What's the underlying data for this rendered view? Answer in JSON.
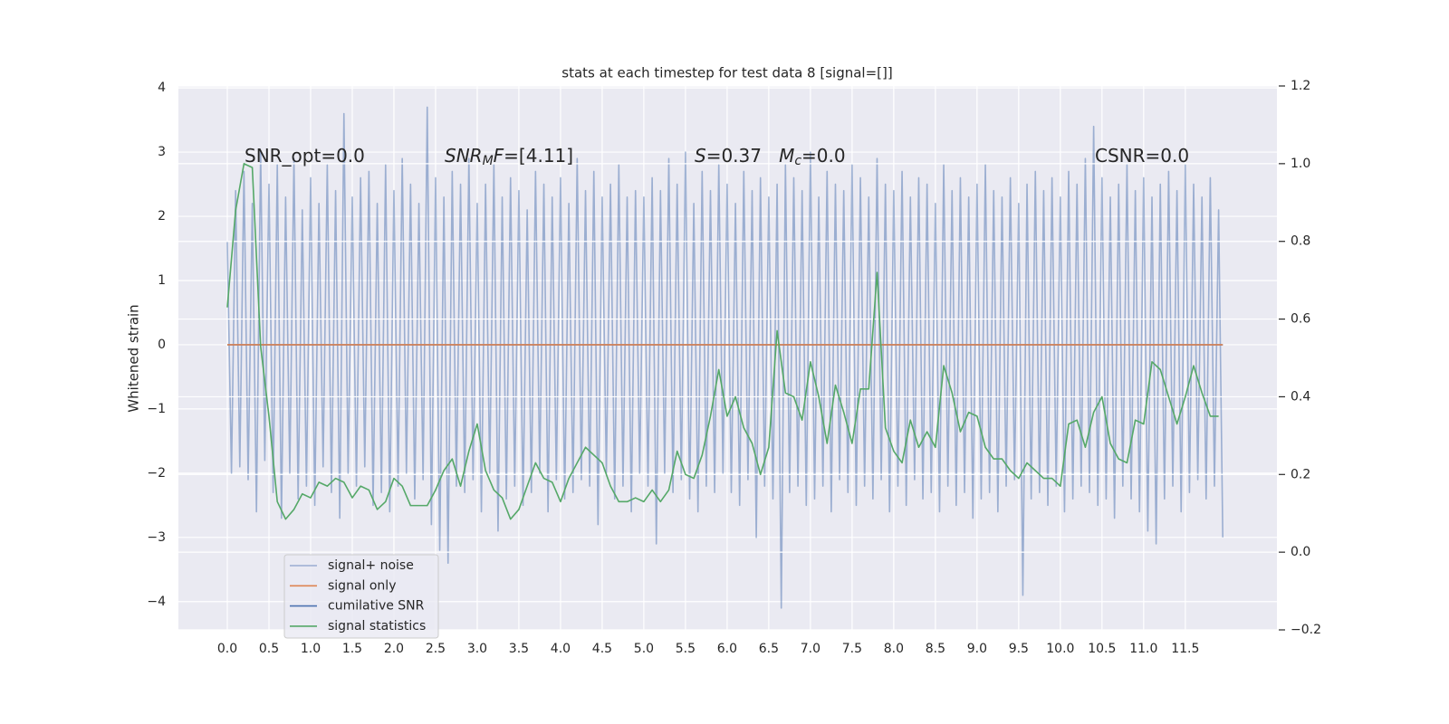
{
  "chart_data": {
    "type": "line",
    "title": "stats at each timestep for test data 8 [signal=[]]",
    "ylabel": "Whitened strain",
    "xlim": [
      -0.587,
      12.6
    ],
    "ylim": [
      -4.44,
      4.03
    ],
    "y2lim": [
      -0.2,
      1.2
    ],
    "xticks": [
      {
        "value": 0,
        "label": "0.0"
      },
      0.5,
      {
        "value": 1,
        "label": "1.0"
      },
      1.5,
      {
        "value": 2,
        "label": "2.0"
      },
      2.5,
      {
        "value": 3,
        "label": "3.0"
      },
      3.5,
      {
        "value": 4,
        "label": "4.0"
      },
      4.5,
      {
        "value": 5,
        "label": "5.0"
      },
      5.5,
      {
        "value": 6,
        "label": "6.0"
      },
      6.5,
      {
        "value": 7,
        "label": "7.0"
      },
      7.5,
      {
        "value": 8,
        "label": "8.0"
      },
      8.5,
      {
        "value": 9,
        "label": "9.0"
      },
      9.5,
      {
        "value": 10,
        "label": "10.0"
      },
      10.5,
      {
        "value": 11,
        "label": "11.0"
      },
      11.5
    ],
    "yticks": [
      {
        "value": -4,
        "label": "−4"
      },
      {
        "value": -3,
        "label": "−3"
      },
      {
        "value": -2,
        "label": "−2"
      },
      {
        "value": -1,
        "label": "−1"
      },
      0,
      1,
      2,
      3,
      4
    ],
    "y2ticks": [
      {
        "value": -0.2,
        "label": "−0.2"
      },
      {
        "value": 0,
        "label": "0.0"
      },
      0.2,
      0.4,
      0.6,
      0.8,
      {
        "value": 1,
        "label": "1.0"
      },
      1.2
    ],
    "grid": true,
    "legend": "lower left",
    "annotations": [
      [
        {
          "text": "SNR_opt=0.0"
        }
      ],
      [
        {
          "text": "SNR",
          "italic": true
        },
        {
          "text": "M",
          "italic": true,
          "sub": true
        },
        {
          "text": "F",
          "italic": true
        },
        {
          "text": "=[4.11]"
        }
      ],
      [
        {
          "text": "S",
          "italic": true
        },
        {
          "text": "=0.37   "
        },
        {
          "text": "M",
          "italic": true
        },
        {
          "text": "c",
          "italic": true,
          "sub": true
        },
        {
          "text": "=0.0"
        }
      ],
      [
        {
          "text": "CSNR=0.0"
        }
      ]
    ],
    "series": [
      {
        "name": "signal+ noise",
        "color": "#4c72b0",
        "opacity": 0.5,
        "x": [
          0,
          0.05,
          0.1,
          0.15,
          0.2,
          0.25,
          0.3,
          0.35,
          0.4,
          0.45,
          0.5,
          0.55,
          0.6,
          0.65,
          0.7,
          0.75,
          0.8,
          0.85,
          0.9,
          0.95,
          1,
          1.05,
          1.1,
          1.15,
          1.2,
          1.25,
          1.3,
          1.35,
          1.4,
          1.45,
          1.5,
          1.55,
          1.6,
          1.65,
          1.7,
          1.75,
          1.8,
          1.85,
          1.9,
          1.95,
          2,
          2.05,
          2.1,
          2.15,
          2.2,
          2.25,
          2.3,
          2.35,
          2.4,
          2.45,
          2.5,
          2.55,
          2.6,
          2.65,
          2.7,
          2.75,
          2.8,
          2.85,
          2.9,
          2.95,
          3,
          3.05,
          3.1,
          3.15,
          3.2,
          3.25,
          3.3,
          3.35,
          3.4,
          3.45,
          3.5,
          3.55,
          3.6,
          3.65,
          3.7,
          3.75,
          3.8,
          3.85,
          3.9,
          3.95,
          4,
          4.05,
          4.1,
          4.15,
          4.2,
          4.25,
          4.3,
          4.35,
          4.4,
          4.45,
          4.5,
          4.55,
          4.6,
          4.65,
          4.7,
          4.75,
          4.8,
          4.85,
          4.9,
          4.95,
          5,
          5.05,
          5.1,
          5.15,
          5.2,
          5.25,
          5.3,
          5.35,
          5.4,
          5.45,
          5.5,
          5.55,
          5.6,
          5.65,
          5.7,
          5.75,
          5.8,
          5.85,
          5.9,
          5.95,
          6,
          6.05,
          6.1,
          6.15,
          6.2,
          6.25,
          6.3,
          6.35,
          6.4,
          6.45,
          6.5,
          6.55,
          6.6,
          6.65,
          6.7,
          6.75,
          6.8,
          6.85,
          6.9,
          6.95,
          7,
          7.05,
          7.1,
          7.15,
          7.2,
          7.25,
          7.3,
          7.35,
          7.4,
          7.45,
          7.5,
          7.55,
          7.6,
          7.65,
          7.7,
          7.75,
          7.8,
          7.85,
          7.9,
          7.95,
          8,
          8.05,
          8.1,
          8.15,
          8.2,
          8.25,
          8.3,
          8.35,
          8.4,
          8.45,
          8.5,
          8.55,
          8.6,
          8.65,
          8.7,
          8.75,
          8.8,
          8.85,
          8.9,
          8.95,
          9,
          9.05,
          9.1,
          9.15,
          9.2,
          9.25,
          9.3,
          9.35,
          9.4,
          9.45,
          9.5,
          9.55,
          9.6,
          9.65,
          9.7,
          9.75,
          9.8,
          9.85,
          9.9,
          9.95,
          10,
          10.05,
          10.1,
          10.15,
          10.2,
          10.25,
          10.3,
          10.35,
          10.4,
          10.45,
          10.5,
          10.55,
          10.6,
          10.65,
          10.7,
          10.75,
          10.8,
          10.85,
          10.9,
          10.95,
          11,
          11.05,
          11.1,
          11.15,
          11.2,
          11.25,
          11.3,
          11.35,
          11.4,
          11.45,
          11.5,
          11.55,
          11.6,
          11.65,
          11.7,
          11.75,
          11.8,
          11.85,
          11.9,
          11.95
        ],
        "values": [
          1.6,
          -2.0,
          2.4,
          -1.9,
          2.7,
          -2.1,
          2.2,
          -2.6,
          3.0,
          -1.8,
          2.5,
          -2.3,
          2.8,
          -2.7,
          2.3,
          -2.0,
          2.9,
          -2.4,
          2.1,
          -2.2,
          2.6,
          -2.5,
          2.2,
          -1.9,
          2.8,
          -2.3,
          2.4,
          -2.7,
          3.6,
          -2.0,
          2.3,
          -2.2,
          2.6,
          -1.9,
          2.7,
          -2.5,
          2.2,
          -2.3,
          2.8,
          -2.6,
          2.4,
          -2.2,
          2.9,
          -2.0,
          2.5,
          -2.4,
          2.2,
          -2.1,
          3.7,
          -2.8,
          2.6,
          -3.2,
          2.3,
          -3.4,
          2.7,
          -2.2,
          2.5,
          -2.3,
          2.9,
          -2.1,
          2.2,
          -2.6,
          2.5,
          -2.0,
          2.8,
          -2.9,
          2.3,
          -2.4,
          2.6,
          -2.2,
          2.4,
          -2.5,
          2.1,
          -2.3,
          2.7,
          -2.0,
          2.5,
          -2.6,
          2.3,
          -2.1,
          2.6,
          -2.4,
          2.2,
          -2.3,
          2.9,
          -2.1,
          2.4,
          -2.2,
          2.7,
          -2.8,
          2.3,
          -2.0,
          2.5,
          -2.4,
          2.8,
          -2.2,
          2.3,
          -2.6,
          2.4,
          -2.0,
          2.3,
          -2.2,
          2.6,
          -3.1,
          2.4,
          -2.0,
          2.9,
          -2.3,
          2.5,
          -2.1,
          3.0,
          -2.4,
          2.2,
          -2.6,
          2.7,
          -2.2,
          2.4,
          -2.3,
          2.8,
          -2.0,
          2.5,
          -2.3,
          2.2,
          -2.5,
          2.7,
          -2.1,
          2.4,
          -3.0,
          2.6,
          -2.2,
          2.3,
          -2.4,
          2.5,
          -4.1,
          2.8,
          -2.3,
          2.6,
          -2.2,
          2.4,
          -2.5,
          3.0,
          -2.4,
          2.3,
          -2.2,
          2.7,
          -2.6,
          2.5,
          -2.1,
          2.4,
          -2.3,
          2.8,
          -2.5,
          2.6,
          -2.2,
          2.3,
          -2.4,
          2.9,
          -2.1,
          2.5,
          -2.6,
          2.4,
          -2.2,
          2.7,
          -2.5,
          2.3,
          -2.1,
          2.6,
          -2.4,
          2.5,
          -2.3,
          2.2,
          -2.6,
          2.8,
          -2.2,
          2.4,
          -2.5,
          2.6,
          -2.3,
          2.3,
          -2.7,
          2.5,
          -2.4,
          2.8,
          -2.3,
          2.4,
          -2.6,
          2.3,
          -2.2,
          2.6,
          -2.1,
          2.2,
          -3.9,
          2.5,
          -2.4,
          2.7,
          -2.3,
          2.4,
          -2.5,
          2.6,
          -2.2,
          2.3,
          -2.6,
          2.7,
          -2.4,
          2.5,
          -2.2,
          2.9,
          -2.3,
          3.4,
          -2.5,
          2.6,
          -2.4,
          2.3,
          -2.7,
          2.5,
          -2.2,
          2.8,
          -2.4,
          2.4,
          -2.6,
          2.6,
          -2.9,
          2.3,
          -3.1,
          2.5,
          -2.4,
          2.7,
          -2.2,
          2.4,
          -2.6,
          2.8,
          -2.3,
          2.5,
          -2.1,
          2.3,
          -2.4,
          2.6,
          -2.2,
          2.1,
          -3.0
        ]
      },
      {
        "name": "signal only",
        "color": "#dd8452",
        "opacity": 1,
        "x": [
          0,
          11.95
        ],
        "values": [
          0,
          0
        ]
      },
      {
        "name": "cumilative SNR",
        "color": "#4c72b0",
        "opacity": 1,
        "x": [
          0,
          11.95
        ],
        "values": [
          0,
          0
        ]
      },
      {
        "name": "signal statistics",
        "color": "#55a868",
        "opacity": 1,
        "axis": "y2",
        "x": [
          0,
          0.1,
          0.2,
          0.3,
          0.4,
          0.5,
          0.6,
          0.7,
          0.8,
          0.9,
          1,
          1.1,
          1.2,
          1.3,
          1.4,
          1.5,
          1.6,
          1.7,
          1.8,
          1.9,
          2,
          2.1,
          2.2,
          2.3,
          2.4,
          2.5,
          2.6,
          2.7,
          2.8,
          2.9,
          3,
          3.1,
          3.2,
          3.3,
          3.4,
          3.5,
          3.6,
          3.7,
          3.8,
          3.9,
          4,
          4.1,
          4.2,
          4.3,
          4.4,
          4.5,
          4.6,
          4.7,
          4.8,
          4.9,
          5,
          5.1,
          5.2,
          5.3,
          5.4,
          5.5,
          5.6,
          5.7,
          5.8,
          5.9,
          6,
          6.1,
          6.2,
          6.3,
          6.4,
          6.5,
          6.6,
          6.7,
          6.8,
          6.9,
          7,
          7.1,
          7.2,
          7.3,
          7.4,
          7.5,
          7.6,
          7.7,
          7.8,
          7.9,
          8,
          8.1,
          8.2,
          8.3,
          8.4,
          8.5,
          8.6,
          8.7,
          8.8,
          8.9,
          9,
          9.1,
          9.2,
          9.3,
          9.4,
          9.5,
          9.6,
          9.7,
          9.8,
          9.9,
          10,
          10.1,
          10.2,
          10.3,
          10.4,
          10.5,
          10.6,
          10.7,
          10.8,
          10.9,
          11,
          11.1,
          11.2,
          11.3,
          11.4,
          11.5,
          11.6,
          11.7,
          11.8,
          11.9
        ],
        "values": [
          0.63,
          0.88,
          1.0,
          0.99,
          0.53,
          0.35,
          0.13,
          0.085,
          0.11,
          0.15,
          0.14,
          0.18,
          0.17,
          0.19,
          0.18,
          0.14,
          0.17,
          0.16,
          0.11,
          0.13,
          0.19,
          0.17,
          0.12,
          0.12,
          0.12,
          0.16,
          0.21,
          0.24,
          0.17,
          0.26,
          0.33,
          0.21,
          0.16,
          0.14,
          0.085,
          0.11,
          0.17,
          0.23,
          0.19,
          0.18,
          0.13,
          0.19,
          0.23,
          0.27,
          0.25,
          0.23,
          0.17,
          0.13,
          0.13,
          0.14,
          0.13,
          0.16,
          0.13,
          0.16,
          0.26,
          0.2,
          0.19,
          0.25,
          0.35,
          0.47,
          0.35,
          0.4,
          0.32,
          0.28,
          0.2,
          0.27,
          0.57,
          0.41,
          0.4,
          0.34,
          0.49,
          0.4,
          0.28,
          0.43,
          0.36,
          0.28,
          0.42,
          0.42,
          0.72,
          0.32,
          0.26,
          0.23,
          0.34,
          0.27,
          0.31,
          0.27,
          0.48,
          0.41,
          0.31,
          0.36,
          0.35,
          0.27,
          0.24,
          0.24,
          0.21,
          0.19,
          0.23,
          0.21,
          0.19,
          0.19,
          0.17,
          0.33,
          0.34,
          0.27,
          0.36,
          0.4,
          0.28,
          0.24,
          0.23,
          0.34,
          0.33,
          0.49,
          0.47,
          0.4,
          0.33,
          0.4,
          0.48,
          0.41,
          0.35,
          0.35
        ]
      }
    ]
  }
}
